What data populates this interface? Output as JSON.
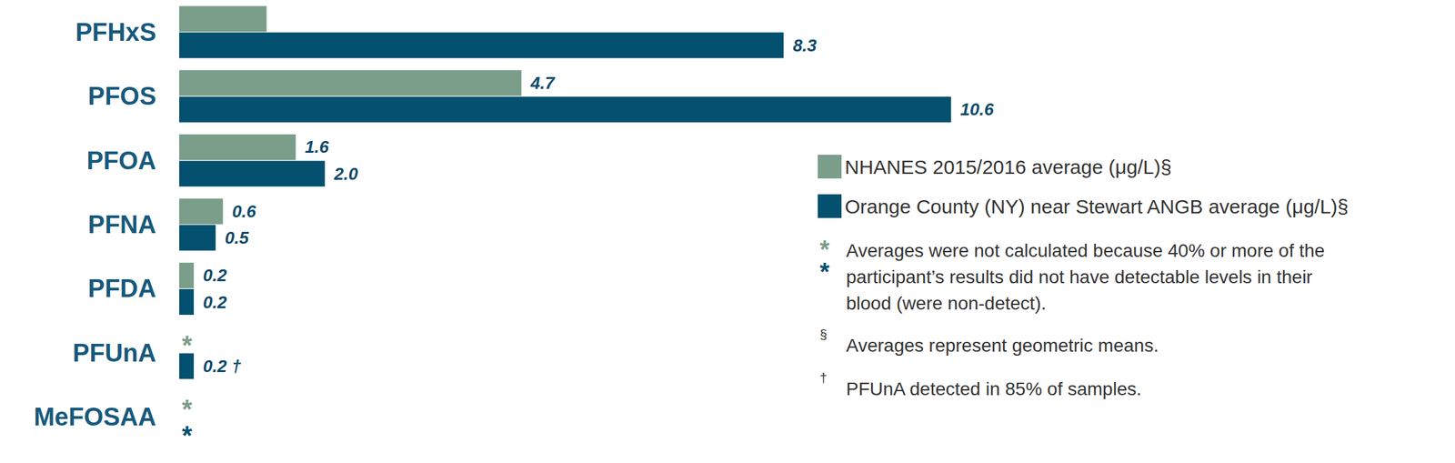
{
  "chart_data": {
    "type": "bar",
    "orientation": "horizontal",
    "categories": [
      "PFHxS",
      "PFOS",
      "PFOA",
      "PFNA",
      "PFDA",
      "PFUnA",
      "MeFOSAA"
    ],
    "series": [
      {
        "name": "NHANES 2015/2016 average (μg/L)§",
        "color": "#7a9e8a",
        "values": [
          1.2,
          4.7,
          1.6,
          0.6,
          0.2,
          null,
          null
        ],
        "value_labels": [
          null,
          "4.7",
          "1.6",
          "0.6",
          "0.2",
          "*",
          "*"
        ]
      },
      {
        "name": "Orange County (NY) near Stewart ANGB average (μg/L)§",
        "color": "#04506f",
        "values": [
          8.3,
          10.6,
          2.0,
          0.5,
          0.2,
          0.2,
          null
        ],
        "value_labels": [
          "8.3",
          "10.6",
          "2.0",
          "0.5",
          "0.2",
          "0.2 †",
          "*"
        ]
      }
    ],
    "xlim": [
      0,
      12
    ],
    "data_labels": true,
    "tick_labels": "y",
    "legend": "right",
    "annotations": [
      {
        "symbols": [
          "*",
          "*"
        ],
        "text": "Averages were not calculated because 40% or more of the participant’s results did not have detectable levels in their blood (were non-detect)."
      },
      {
        "symbols": [
          "§"
        ],
        "text": "Averages represent geometric means."
      },
      {
        "symbols": [
          "†"
        ],
        "text": "PFUnA detected in 85% of samples."
      }
    ]
  }
}
